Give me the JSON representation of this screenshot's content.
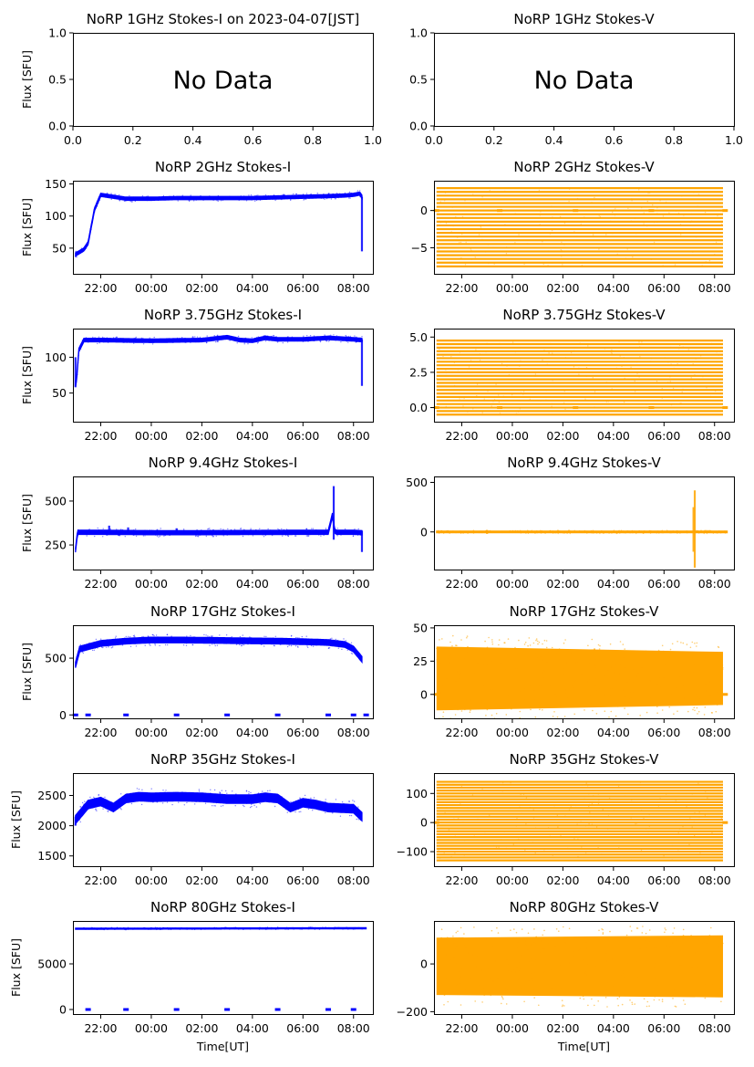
{
  "figure_title": "NoRP 1GHz Stokes-I on 2023-04-07[JST]",
  "colors": {
    "stokes_i": "#0000ff",
    "stokes_v": "#ffa500"
  },
  "chart_data": [
    {
      "id": "i1",
      "type": "scatter",
      "title": "NoRP 1GHz Stokes-I on 2023-04-07[JST]",
      "ylabel": "Flux [SFU]",
      "xlabel": "",
      "message": "No Data",
      "xlim": [
        0,
        1
      ],
      "ylim": [
        0,
        1
      ],
      "xticks": [
        "0.0",
        "0.2",
        "0.4",
        "0.6",
        "0.8",
        "1.0"
      ],
      "yticks": [
        0.0,
        0.5,
        1.0
      ],
      "ytick_labels": [
        "0.0",
        "0.5",
        "1.0"
      ],
      "series": []
    },
    {
      "id": "v1",
      "type": "scatter",
      "title": "NoRP 1GHz Stokes-V",
      "ylabel": "",
      "xlabel": "",
      "message": "No Data",
      "xlim": [
        0,
        1
      ],
      "ylim": [
        0,
        1
      ],
      "xticks": [
        "0.0",
        "0.2",
        "0.4",
        "0.6",
        "0.8",
        "1.0"
      ],
      "yticks": [
        0.0,
        0.5,
        1.0
      ],
      "ytick_labels": [
        "0.0",
        "0.5",
        "1.0"
      ],
      "series": []
    },
    {
      "id": "i2",
      "type": "scatter",
      "title": "NoRP 2GHz Stokes-I",
      "ylabel": "Flux [SFU]",
      "xlabel": "",
      "color": "#0000ff",
      "xlim": [
        "20:54",
        "08:46"
      ],
      "ylim": [
        10,
        155
      ],
      "xticks": [
        "22:00",
        "00:00",
        "02:00",
        "04:00",
        "06:00",
        "08:00"
      ],
      "yticks": [
        50,
        100,
        150
      ],
      "ytick_labels": [
        "50",
        "100",
        "150"
      ],
      "style": "trace",
      "series": [
        {
          "x": [
            "21:00",
            "21:20",
            "21:30",
            "21:45",
            "22:00",
            "23:00",
            "00:00",
            "01:00",
            "02:00",
            "03:00",
            "04:00",
            "05:00",
            "06:00",
            "07:00",
            "07:40",
            "08:00",
            "08:15",
            "08:20"
          ],
          "y": [
            40,
            48,
            58,
            110,
            133,
            127,
            127,
            128,
            128,
            128,
            128,
            129,
            130,
            131,
            132,
            133,
            135,
            130
          ]
        }
      ],
      "spikes": [
        {
          "x": "08:20",
          "y0": 45,
          "y1": 130
        }
      ],
      "band_halfwidth": 2.5
    },
    {
      "id": "v2",
      "type": "scatter",
      "title": "NoRP 2GHz Stokes-V",
      "ylabel": "",
      "xlabel": "",
      "color": "#ffa500",
      "xlim": [
        "20:54",
        "08:46"
      ],
      "ylim": [
        -8.5,
        4
      ],
      "xticks": [
        "22:00",
        "00:00",
        "02:00",
        "04:00",
        "06:00",
        "08:00"
      ],
      "yticks": [
        -5,
        0
      ],
      "ytick_labels": [
        "−5",
        "0"
      ],
      "style": "levels",
      "x_range": [
        "21:00",
        "08:20"
      ],
      "levels_step": 0.5,
      "level_min": -7.5,
      "level_max": 3.0,
      "zero_markers": [
        "21:00",
        "23:30",
        "02:30",
        "05:30",
        "08:25"
      ]
    },
    {
      "id": "i3",
      "type": "scatter",
      "title": "NoRP 3.75GHz Stokes-I",
      "ylabel": "Flux [SFU]",
      "xlabel": "",
      "color": "#0000ff",
      "xlim": [
        "20:54",
        "08:46"
      ],
      "ylim": [
        10,
        140
      ],
      "xticks": [
        "22:00",
        "00:00",
        "02:00",
        "04:00",
        "06:00",
        "08:00"
      ],
      "yticks": [
        50,
        100
      ],
      "ytick_labels": [
        "50",
        "100"
      ],
      "style": "trace",
      "series": [
        {
          "x": [
            "21:00",
            "21:03",
            "21:08",
            "21:20",
            "22:00",
            "00:00",
            "02:00",
            "03:00",
            "03:30",
            "04:00",
            "04:30",
            "05:00",
            "06:00",
            "07:00",
            "08:00",
            "08:20"
          ],
          "y": [
            62,
            70,
            110,
            124,
            124,
            123,
            124,
            128,
            124,
            123,
            127,
            125,
            125,
            127,
            125,
            124
          ]
        }
      ],
      "spikes": [
        {
          "x": "21:00",
          "y0": 58,
          "y1": 100
        },
        {
          "x": "08:20",
          "y0": 60,
          "y1": 125
        }
      ],
      "band_halfwidth": 2.5
    },
    {
      "id": "v3",
      "type": "scatter",
      "title": "NoRP 3.75GHz Stokes-V",
      "ylabel": "",
      "xlabel": "",
      "color": "#ffa500",
      "xlim": [
        "20:54",
        "08:46"
      ],
      "ylim": [
        -1.0,
        5.6
      ],
      "xticks": [
        "22:00",
        "00:00",
        "02:00",
        "04:00",
        "06:00",
        "08:00"
      ],
      "yticks": [
        0.0,
        2.5,
        5.0
      ],
      "ytick_labels": [
        "0.0",
        "2.5",
        "5.0"
      ],
      "style": "levels",
      "x_range": [
        "21:00",
        "08:20"
      ],
      "levels_step": 0.25,
      "level_min": -0.5,
      "level_max": 4.75,
      "zero_markers": [
        "21:00",
        "23:30",
        "02:30",
        "05:30",
        "08:25"
      ]
    },
    {
      "id": "i4",
      "type": "scatter",
      "title": "NoRP 9.4GHz Stokes-I",
      "ylabel": "Flux [SFU]",
      "xlabel": "",
      "color": "#0000ff",
      "xlim": [
        "20:54",
        "08:46"
      ],
      "ylim": [
        110,
        640
      ],
      "xticks": [
        "22:00",
        "00:00",
        "02:00",
        "04:00",
        "06:00",
        "08:00"
      ],
      "yticks": [
        250,
        500
      ],
      "ytick_labels": [
        "250",
        "500"
      ],
      "style": "trace",
      "series": [
        {
          "x": [
            "21:00",
            "21:05",
            "22:00",
            "00:00",
            "02:00",
            "04:00",
            "06:00",
            "07:00",
            "07:10",
            "07:15",
            "07:20",
            "08:00",
            "08:20"
          ],
          "y": [
            220,
            322,
            322,
            320,
            320,
            321,
            322,
            322,
            420,
            330,
            322,
            322,
            320
          ]
        }
      ],
      "spikes": [
        {
          "x": "07:13",
          "y0": 280,
          "y1": 585
        },
        {
          "x": "22:20",
          "y0": 320,
          "y1": 360
        },
        {
          "x": "23:05",
          "y0": 320,
          "y1": 350
        },
        {
          "x": "01:00",
          "y0": 320,
          "y1": 345
        },
        {
          "x": "08:20",
          "y0": 210,
          "y1": 330
        }
      ],
      "band_halfwidth": 12
    },
    {
      "id": "v4",
      "type": "scatter",
      "title": "NoRP 9.4GHz Stokes-V",
      "ylabel": "",
      "xlabel": "",
      "color": "#ffa500",
      "xlim": [
        "20:54",
        "08:46"
      ],
      "ylim": [
        -380,
        560
      ],
      "xticks": [
        "22:00",
        "00:00",
        "02:00",
        "04:00",
        "06:00",
        "08:00"
      ],
      "yticks": [
        0,
        500
      ],
      "ytick_labels": [
        "0",
        "500"
      ],
      "style": "trace",
      "series": [
        {
          "x": [
            "21:00",
            "08:30"
          ],
          "y": [
            0,
            0
          ]
        }
      ],
      "spikes": [
        {
          "x": "07:13",
          "y0": -360,
          "y1": 420
        },
        {
          "x": "07:10",
          "y0": -200,
          "y1": 250
        },
        {
          "x": "23:00",
          "y0": -20,
          "y1": 20
        }
      ],
      "band_halfwidth": 8
    },
    {
      "id": "i5",
      "type": "scatter",
      "title": "NoRP 17GHz Stokes-I",
      "ylabel": "Flux [SFU]",
      "xlabel": "",
      "color": "#0000ff",
      "xlim": [
        "20:54",
        "08:46"
      ],
      "ylim": [
        -30,
        790
      ],
      "xticks": [
        "22:00",
        "00:00",
        "02:00",
        "04:00",
        "06:00",
        "08:00"
      ],
      "yticks": [
        0,
        500
      ],
      "ytick_labels": [
        "0",
        "500"
      ],
      "style": "trace",
      "series": [
        {
          "x": [
            "21:00",
            "21:10",
            "22:00",
            "23:00",
            "00:00",
            "01:00",
            "02:00",
            "03:00",
            "04:00",
            "05:00",
            "06:00",
            "07:00",
            "07:40",
            "08:00",
            "08:20"
          ],
          "y": [
            440,
            580,
            630,
            650,
            660,
            660,
            658,
            655,
            652,
            650,
            645,
            638,
            620,
            580,
            490
          ]
        }
      ],
      "spikes": [],
      "band_halfwidth": 25,
      "zero_markers": [
        "21:00",
        "21:30",
        "23:00",
        "01:00",
        "03:00",
        "05:00",
        "07:00",
        "08:00",
        "08:30"
      ]
    },
    {
      "id": "v5",
      "type": "scatter",
      "title": "NoRP 17GHz Stokes-V",
      "ylabel": "",
      "xlabel": "",
      "color": "#ffa500",
      "xlim": [
        "20:54",
        "08:46"
      ],
      "ylim": [
        -18,
        52
      ],
      "xticks": [
        "22:00",
        "00:00",
        "02:00",
        "04:00",
        "06:00",
        "08:00"
      ],
      "yticks": [
        0,
        25,
        50
      ],
      "ytick_labels": [
        "0",
        "25",
        "50"
      ],
      "style": "cloud",
      "x_range": [
        "21:00",
        "08:20"
      ],
      "cloud": {
        "center": 12,
        "halfwidth_start": 24,
        "halfwidth_end": 20
      },
      "zero_markers": [
        "21:00",
        "08:25"
      ]
    },
    {
      "id": "i6",
      "type": "scatter",
      "title": "NoRP 35GHz Stokes-I",
      "ylabel": "Flux [SFU]",
      "xlabel": "",
      "color": "#0000ff",
      "xlim": [
        "20:54",
        "08:46"
      ],
      "ylim": [
        1330,
        2870
      ],
      "xticks": [
        "22:00",
        "00:00",
        "02:00",
        "04:00",
        "06:00",
        "08:00"
      ],
      "yticks": [
        1500,
        2000,
        2500
      ],
      "ytick_labels": [
        "1500",
        "2000",
        "2500"
      ],
      "style": "trace",
      "series": [
        {
          "x": [
            "21:00",
            "21:30",
            "22:00",
            "22:30",
            "23:00",
            "23:30",
            "00:00",
            "01:00",
            "02:00",
            "03:00",
            "04:00",
            "04:30",
            "05:00",
            "05:30",
            "06:00",
            "06:30",
            "07:00",
            "08:00",
            "08:20"
          ],
          "y": [
            2100,
            2350,
            2400,
            2300,
            2450,
            2480,
            2470,
            2480,
            2470,
            2440,
            2440,
            2470,
            2450,
            2300,
            2380,
            2350,
            2300,
            2280,
            2150
          ]
        }
      ],
      "spikes": [
        {
          "x": "21:00",
          "y0": 2000,
          "y1": 2150
        }
      ],
      "band_halfwidth": 70
    },
    {
      "id": "v6",
      "type": "scatter",
      "title": "NoRP 35GHz Stokes-V",
      "ylabel": "",
      "xlabel": "",
      "color": "#ffa500",
      "xlim": [
        "20:54",
        "08:46"
      ],
      "ylim": [
        -150,
        170
      ],
      "xticks": [
        "22:00",
        "00:00",
        "02:00",
        "04:00",
        "06:00",
        "08:00"
      ],
      "yticks": [
        -100,
        0,
        100
      ],
      "ytick_labels": [
        "−100",
        "0",
        "100"
      ],
      "style": "levels",
      "x_range": [
        "21:00",
        "08:20"
      ],
      "levels_step": 10,
      "level_min": -130,
      "level_max": 140,
      "zero_markers": [
        "21:00",
        "08:25"
      ]
    },
    {
      "id": "i7",
      "type": "scatter",
      "title": "NoRP 80GHz Stokes-I",
      "ylabel": "Flux [SFU]",
      "xlabel": "Time[UT]",
      "color": "#0000ff",
      "xlim": [
        "20:54",
        "08:46"
      ],
      "ylim": [
        -500,
        9700
      ],
      "xticks": [
        "22:00",
        "00:00",
        "02:00",
        "04:00",
        "06:00",
        "08:00"
      ],
      "yticks": [
        0,
        5000
      ],
      "ytick_labels": [
        "0",
        "5000"
      ],
      "style": "trace",
      "series": [
        {
          "x": [
            "21:00",
            "08:30"
          ],
          "y": [
            8850,
            8900
          ]
        }
      ],
      "spikes": [],
      "band_halfwidth": 60,
      "zero_markers": [
        "21:30",
        "23:00",
        "01:00",
        "03:00",
        "05:00",
        "07:00",
        "08:00"
      ]
    },
    {
      "id": "v7",
      "type": "scatter",
      "title": "NoRP 80GHz Stokes-V",
      "ylabel": "",
      "xlabel": "Time[UT]",
      "color": "#ffa500",
      "xlim": [
        "20:54",
        "08:46"
      ],
      "ylim": [
        -210,
        180
      ],
      "xticks": [
        "22:00",
        "00:00",
        "02:00",
        "04:00",
        "06:00",
        "08:00"
      ],
      "yticks": [
        -200,
        0
      ],
      "ytick_labels": [
        "−200",
        "0"
      ],
      "style": "cloud",
      "x_range": [
        "21:00",
        "08:20"
      ],
      "cloud": {
        "center": -10,
        "halfwidth_start": 120,
        "halfwidth_end": 130
      }
    }
  ]
}
